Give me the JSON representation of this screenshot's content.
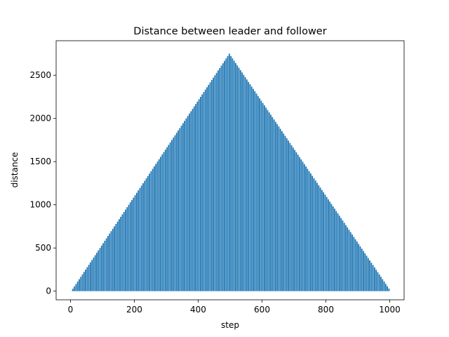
{
  "chart_data": {
    "type": "bar",
    "title": "Distance between leader and follower",
    "xlabel": "step",
    "ylabel": "distance",
    "xlim": [
      -45,
      1045
    ],
    "ylim": [
      -100,
      2900
    ],
    "xticks": [
      0,
      200,
      400,
      600,
      800,
      1000
    ],
    "yticks": [
      0,
      500,
      1000,
      1500,
      2000,
      2500
    ],
    "grid": false,
    "legend": "none",
    "bar_color": "#1f77b4",
    "series": [
      {
        "bar_count": 200,
        "x_start": 2.5,
        "x_step": 5,
        "bar_width": 4,
        "peak_x": 497.5,
        "peak_value": 2750,
        "end_x": 997.5,
        "end_value": 30
      }
    ]
  }
}
